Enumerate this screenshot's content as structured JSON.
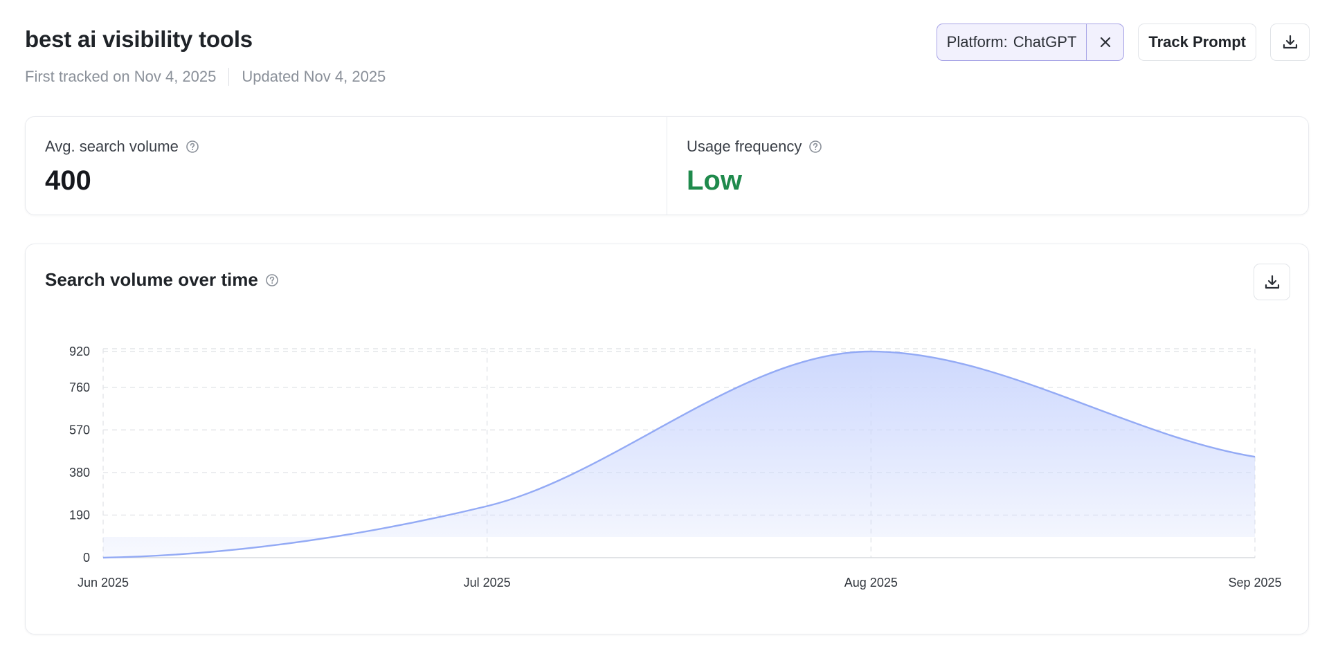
{
  "header": {
    "title": "best ai visibility tools",
    "first_tracked": "First tracked on Nov 4, 2025",
    "updated": "Updated Nov 4, 2025"
  },
  "actions": {
    "filter_key": "Platform:",
    "filter_value": "ChatGPT",
    "track_label": "Track Prompt"
  },
  "stats": {
    "search_volume_label": "Avg. search volume",
    "search_volume_value": "400",
    "usage_label": "Usage frequency",
    "usage_value": "Low"
  },
  "chart_card": {
    "title": "Search volume over time"
  },
  "colors": {
    "accent": "#a7a3e6",
    "line": "#93aaf5",
    "fill_top": "#cdd8fd",
    "low": "#1f8a4c"
  },
  "icons": {
    "close": "close-icon",
    "download": "download-icon",
    "help": "help-circle-icon"
  },
  "chart_data": {
    "type": "area",
    "title": "",
    "xlabel": "",
    "ylabel": "",
    "x": [
      "Jun 2025",
      "Jul 2025",
      "Aug 2025",
      "Sep 2025"
    ],
    "series": [
      {
        "values": [
          0,
          230,
          920,
          450
        ]
      }
    ],
    "yticks": [
      0,
      190,
      380,
      570,
      760,
      920
    ],
    "ylim": [
      0,
      920
    ],
    "grid": true,
    "legend": "none"
  }
}
